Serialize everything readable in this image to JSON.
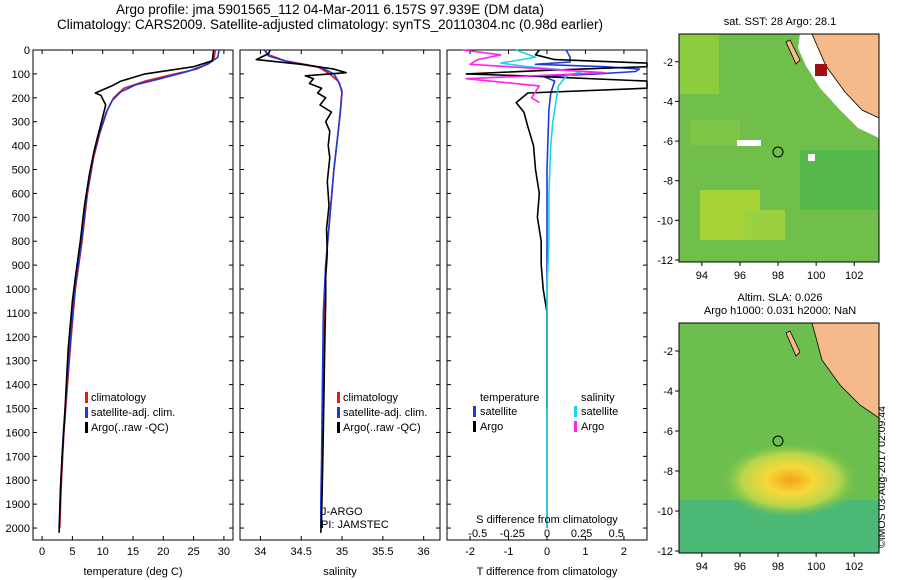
{
  "header": {
    "title_line1": "Argo profile: jma 5901565_112 04-Mar-2011 6.157S 97.939E (DM data)",
    "title_line2": "Climatology: CARS2009. Satellite-adjusted climatology: synTS_20110304.nc (0.98d earlier)"
  },
  "colors": {
    "climatology": "#e31a1c",
    "satellite": "#1f3bd6",
    "argo": "#000000",
    "sat_salinity": "#22d3e3",
    "argo_salinity": "#ff22ee",
    "land": "#f5b98a"
  },
  "y_axis": {
    "range": [
      0,
      2050
    ],
    "ticks": [
      0,
      100,
      200,
      300,
      400,
      500,
      600,
      700,
      800,
      900,
      1000,
      1100,
      1200,
      1300,
      1400,
      1500,
      1600,
      1700,
      1800,
      1900,
      2000
    ]
  },
  "chart_data": [
    {
      "type": "line",
      "id": "temperature",
      "xlabel": "temperature (deg C)",
      "xlim": [
        -1.5,
        31.5
      ],
      "xticks": [
        0,
        5,
        10,
        15,
        20,
        25,
        30
      ],
      "legend": [
        "climatology",
        "satellite-adj. clim.",
        "Argo(..raw -QC)"
      ],
      "series": [
        {
          "name": "climatology",
          "color": "climatology",
          "points": [
            [
              28.6,
              0
            ],
            [
              28.4,
              30
            ],
            [
              27.6,
              55
            ],
            [
              25.5,
              80
            ],
            [
              21,
              105
            ],
            [
              17,
              130
            ],
            [
              13.5,
              160
            ],
            [
              11.8,
              200
            ],
            [
              10.8,
              250
            ],
            [
              9.5,
              350
            ],
            [
              8.5,
              450
            ],
            [
              7.5,
              600
            ],
            [
              6.6,
              800
            ],
            [
              5.5,
              1000
            ],
            [
              4.8,
              1200
            ],
            [
              4.2,
              1400
            ],
            [
              3.6,
              1600
            ],
            [
              3.2,
              1800
            ],
            [
              2.9,
              2000
            ]
          ]
        },
        {
          "name": "satellite-adj. clim.",
          "color": "satellite",
          "points": [
            [
              29.2,
              0
            ],
            [
              29,
              30
            ],
            [
              27.3,
              60
            ],
            [
              24,
              90
            ],
            [
              19.5,
              120
            ],
            [
              15.5,
              145
            ],
            [
              13,
              175
            ],
            [
              11.6,
              210
            ],
            [
              10.6,
              260
            ],
            [
              9.4,
              350
            ],
            [
              8.4,
              450
            ],
            [
              7.4,
              600
            ],
            [
              6.5,
              800
            ],
            [
              5.4,
              1000
            ],
            [
              4.7,
              1200
            ],
            [
              4.1,
              1400
            ],
            [
              3.5,
              1600
            ],
            [
              3.1,
              1800
            ],
            [
              2.8,
              2000
            ]
          ]
        },
        {
          "name": "Argo(..raw -QC)",
          "color": "argo",
          "points": [
            [
              28.3,
              0
            ],
            [
              28.2,
              20
            ],
            [
              28.1,
              45
            ],
            [
              25,
              70
            ],
            [
              17,
              100
            ],
            [
              13,
              130
            ],
            [
              11.5,
              150
            ],
            [
              8.8,
              180
            ],
            [
              9.7,
              190
            ],
            [
              10.5,
              230
            ],
            [
              9.8,
              300
            ],
            [
              9.2,
              360
            ],
            [
              8.6,
              420
            ],
            [
              7.8,
              520
            ],
            [
              7,
              650
            ],
            [
              6.3,
              800
            ],
            [
              5.5,
              950
            ],
            [
              5,
              1050
            ],
            [
              4.3,
              1250
            ],
            [
              4,
              1400
            ],
            [
              3.7,
              1550
            ],
            [
              3.3,
              1700
            ],
            [
              3,
              1850
            ],
            [
              2.9,
              1950
            ],
            [
              2.8,
              2020
            ]
          ]
        }
      ]
    },
    {
      "type": "line",
      "id": "salinity",
      "xlabel": "salinity",
      "xlim": [
        33.75,
        36.2
      ],
      "xticks": [
        34,
        34.5,
        35,
        35.5,
        36
      ],
      "legend": [
        "climatology",
        "satellite-adj. clim.",
        "Argo(..raw -QC)"
      ],
      "bottom_labels": [
        "J-ARGO",
        "PI: JAMSTEC"
      ],
      "series": [
        {
          "name": "climatology",
          "color": "climatology",
          "points": [
            [
              34.05,
              0
            ],
            [
              34.1,
              20
            ],
            [
              34.3,
              45
            ],
            [
              34.7,
              70
            ],
            [
              34.85,
              100
            ],
            [
              34.95,
              130
            ],
            [
              35.0,
              170
            ],
            [
              34.98,
              250
            ],
            [
              34.95,
              350
            ],
            [
              34.9,
              500
            ],
            [
              34.85,
              700
            ],
            [
              34.8,
              900
            ],
            [
              34.78,
              1100
            ],
            [
              34.77,
              1400
            ],
            [
              34.76,
              1700
            ],
            [
              34.75,
              1900
            ],
            [
              34.75,
              2000
            ]
          ]
        },
        {
          "name": "satellite-adj. clim.",
          "color": "satellite",
          "points": [
            [
              34.05,
              0
            ],
            [
              34.1,
              25
            ],
            [
              34.35,
              50
            ],
            [
              34.75,
              75
            ],
            [
              34.9,
              100
            ],
            [
              34.97,
              140
            ],
            [
              35.0,
              180
            ],
            [
              34.98,
              260
            ],
            [
              34.95,
              350
            ],
            [
              34.9,
              500
            ],
            [
              34.85,
              700
            ],
            [
              34.8,
              900
            ],
            [
              34.77,
              1100
            ],
            [
              34.76,
              1400
            ],
            [
              34.75,
              1700
            ],
            [
              34.74,
              1900
            ],
            [
              34.74,
              2000
            ]
          ]
        },
        {
          "name": "Argo(..raw -QC)",
          "color": "argo",
          "points": [
            [
              34.12,
              0
            ],
            [
              34.1,
              15
            ],
            [
              33.95,
              40
            ],
            [
              34.5,
              60
            ],
            [
              34.9,
              80
            ],
            [
              35.05,
              95
            ],
            [
              34.55,
              108
            ],
            [
              34.65,
              120
            ],
            [
              34.6,
              140
            ],
            [
              34.75,
              160
            ],
            [
              34.7,
              180
            ],
            [
              34.8,
              200
            ],
            [
              34.73,
              230
            ],
            [
              34.87,
              260
            ],
            [
              34.8,
              300
            ],
            [
              34.85,
              340
            ],
            [
              34.83,
              400
            ],
            [
              34.85,
              450
            ],
            [
              34.82,
              550
            ],
            [
              34.84,
              650
            ],
            [
              34.81,
              750
            ],
            [
              34.82,
              850
            ],
            [
              34.8,
              950
            ],
            [
              34.8,
              1050
            ],
            [
              34.79,
              1200
            ],
            [
              34.78,
              1400
            ],
            [
              34.77,
              1600
            ],
            [
              34.76,
              1800
            ],
            [
              34.75,
              1950
            ],
            [
              34.74,
              2020
            ]
          ]
        }
      ]
    },
    {
      "type": "line",
      "id": "differences",
      "xlabel": "T difference from climatology",
      "xlim": [
        -2.6,
        2.6
      ],
      "xticks": [
        -2,
        -1,
        0,
        1,
        2
      ],
      "s_xlabel": "S difference from climatology",
      "s_ticks": [
        {
          "pos": -1.8,
          "label": "-0.5"
        },
        {
          "pos": -0.9,
          "label": "-0.25"
        },
        {
          "pos": 0,
          "label": "0"
        },
        {
          "pos": 0.9,
          "label": "0.25"
        },
        {
          "pos": 1.8,
          "label": "0.5"
        }
      ],
      "legend_headers": [
        "temperature",
        "salinity"
      ],
      "legend_t": [
        "satellite",
        "Argo"
      ],
      "legend_s": [
        "satellite",
        "Argo"
      ],
      "series": [
        {
          "name": "T satellite",
          "color": "satellite",
          "points": [
            [
              0.5,
              0
            ],
            [
              0.6,
              30
            ],
            [
              0.6,
              50
            ],
            [
              -0.3,
              60
            ],
            [
              1.5,
              70
            ],
            [
              2.4,
              80
            ],
            [
              2.3,
              90
            ],
            [
              1.3,
              100
            ],
            [
              -0.1,
              110
            ],
            [
              0.2,
              130
            ],
            [
              0.1,
              180
            ],
            [
              0.05,
              250
            ],
            [
              0,
              500
            ],
            [
              0,
              1000
            ],
            [
              0,
              2000
            ]
          ]
        },
        {
          "name": "T Argo",
          "color": "argo",
          "points": [
            [
              -0.2,
              0
            ],
            [
              -0.3,
              20
            ],
            [
              0.2,
              40
            ],
            [
              2.6,
              55
            ],
            [
              2.6,
              70
            ],
            [
              0,
              85
            ],
            [
              -2.1,
              100
            ],
            [
              -0.3,
              110
            ],
            [
              2.6,
              130
            ],
            [
              2.6,
              160
            ],
            [
              -0.5,
              180
            ],
            [
              -0.8,
              220
            ],
            [
              -0.6,
              260
            ],
            [
              -0.5,
              320
            ],
            [
              -0.35,
              400
            ],
            [
              -0.3,
              500
            ],
            [
              -0.2,
              600
            ],
            [
              -0.25,
              700
            ],
            [
              -0.15,
              800
            ],
            [
              -0.15,
              900
            ],
            [
              -0.1,
              1000
            ],
            [
              0,
              1100
            ],
            [
              0,
              1200
            ],
            [
              0,
              1500
            ]
          ]
        },
        {
          "name": "S satellite",
          "color": "sat_salinity",
          "points": [
            [
              -0.8,
              0
            ],
            [
              -0.3,
              30
            ],
            [
              -1.2,
              55
            ],
            [
              -0.5,
              70
            ],
            [
              0.9,
              90
            ],
            [
              0.5,
              110
            ],
            [
              0.3,
              150
            ],
            [
              0.25,
              200
            ],
            [
              0.15,
              300
            ],
            [
              0.1,
              400
            ],
            [
              0.05,
              600
            ],
            [
              0.05,
              800
            ],
            [
              0,
              1000
            ],
            [
              0,
              1400
            ],
            [
              0,
              1800
            ],
            [
              0,
              2000
            ]
          ]
        },
        {
          "name": "S Argo",
          "color": "argo_salinity",
          "points": [
            [
              -2.2,
              0
            ],
            [
              -1.2,
              20
            ],
            [
              -1.8,
              40
            ],
            [
              -2,
              60
            ],
            [
              1.5,
              95
            ],
            [
              -2.1,
              120
            ],
            [
              -0.2,
              150
            ],
            [
              -0.4,
              200
            ],
            [
              -0.2,
              220
            ]
          ]
        }
      ]
    }
  ],
  "maps": {
    "top": {
      "title": "sat. SST: 28 Argo: 28.1",
      "xticks": [
        94,
        96,
        98,
        100,
        102
      ],
      "yticks": [
        -2,
        -4,
        -6,
        -8,
        -10,
        -12
      ]
    },
    "bottom": {
      "title_line1": "Altim. SLA: 0.026",
      "title_line2": "Argo h1000: 0.031 h2000: NaN",
      "xticks": [
        94,
        96,
        98,
        100,
        102
      ],
      "yticks": [
        -2,
        -4,
        -6,
        -8,
        -10,
        -12
      ]
    }
  },
  "stamp": "©IMOS 03-Aug-2017 02:09:44"
}
